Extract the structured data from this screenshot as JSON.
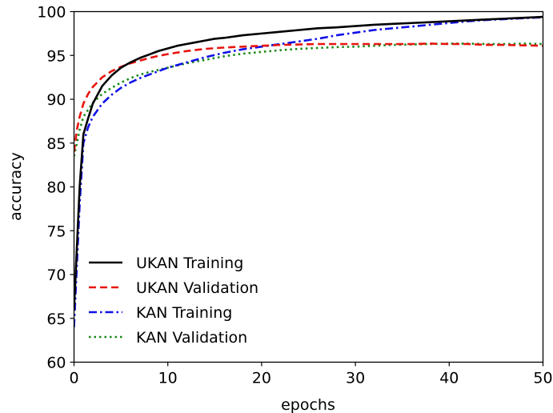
{
  "chart_data": {
    "type": "line",
    "title": "",
    "xlabel": "epochs",
    "ylabel": "accuracy",
    "xlim": [
      0,
      50
    ],
    "ylim": [
      60,
      100
    ],
    "xticks": [
      0,
      10,
      20,
      30,
      40,
      50
    ],
    "yticks": [
      60,
      65,
      70,
      75,
      80,
      85,
      90,
      95,
      100
    ],
    "grid": false,
    "legend_position": "lower-left",
    "series": [
      {
        "name": "UKAN Training",
        "color": "#000000",
        "dash": "solid",
        "x": [
          0,
          0.3,
          0.6,
          1,
          1.5,
          2,
          3,
          4,
          5,
          6,
          7,
          8,
          9,
          10,
          11,
          12,
          13,
          14,
          15,
          16,
          18,
          20,
          22,
          24,
          26,
          28,
          30,
          32,
          34,
          36,
          38,
          40,
          42,
          44,
          46,
          48,
          50
        ],
        "y": [
          66.0,
          73.0,
          80.0,
          86.0,
          87.8,
          89.5,
          91.5,
          92.7,
          93.6,
          94.2,
          94.7,
          95.1,
          95.5,
          95.8,
          96.1,
          96.3,
          96.5,
          96.7,
          96.9,
          97.0,
          97.3,
          97.5,
          97.7,
          97.9,
          98.1,
          98.2,
          98.35,
          98.5,
          98.6,
          98.7,
          98.8,
          98.9,
          99.0,
          99.1,
          99.2,
          99.3,
          99.4
        ]
      },
      {
        "name": "UKAN Validation",
        "color": "#e8140f",
        "dash": "dashed",
        "x": [
          0,
          0.3,
          0.6,
          1,
          1.5,
          2,
          3,
          4,
          5,
          6,
          7,
          8,
          9,
          10,
          12,
          14,
          16,
          18,
          20,
          22,
          24,
          26,
          28,
          30,
          32,
          34,
          36,
          38,
          40,
          42,
          44,
          46,
          48,
          50
        ],
        "y": [
          84.0,
          86.5,
          88.0,
          89.5,
          90.6,
          91.4,
          92.5,
          93.2,
          93.7,
          94.1,
          94.4,
          94.7,
          94.95,
          95.15,
          95.5,
          95.75,
          95.9,
          96.0,
          96.1,
          96.2,
          96.25,
          96.3,
          96.3,
          96.3,
          96.3,
          96.3,
          96.3,
          96.35,
          96.3,
          96.3,
          96.2,
          96.2,
          96.15,
          96.1
        ]
      },
      {
        "name": "KAN Training",
        "color": "#1010e8",
        "dash": "dashdot",
        "x": [
          0,
          0.3,
          0.6,
          1,
          1.5,
          2,
          3,
          4,
          5,
          6,
          7,
          8,
          9,
          10,
          12,
          14,
          16,
          18,
          20,
          22,
          24,
          26,
          28,
          30,
          32,
          34,
          36,
          38,
          40,
          42,
          44,
          46,
          48,
          50
        ],
        "y": [
          64.0,
          71.0,
          78.0,
          85.0,
          86.8,
          88.0,
          89.5,
          90.5,
          91.3,
          91.9,
          92.4,
          92.8,
          93.2,
          93.6,
          94.2,
          94.8,
          95.3,
          95.7,
          96.0,
          96.3,
          96.6,
          96.9,
          97.3,
          97.6,
          97.9,
          98.1,
          98.3,
          98.5,
          98.7,
          98.9,
          99.05,
          99.15,
          99.25,
          99.35
        ]
      },
      {
        "name": "KAN Validation",
        "color": "#178a17",
        "dash": "dotted",
        "x": [
          0,
          0.3,
          0.6,
          1,
          1.5,
          2,
          3,
          4,
          5,
          6,
          7,
          8,
          9,
          10,
          12,
          14,
          16,
          18,
          20,
          22,
          24,
          26,
          28,
          30,
          32,
          34,
          36,
          38,
          40,
          42,
          44,
          46,
          48,
          50
        ],
        "y": [
          83.5,
          85.0,
          86.5,
          88.0,
          88.8,
          89.6,
          90.6,
          91.3,
          91.9,
          92.4,
          92.8,
          93.1,
          93.35,
          93.6,
          94.1,
          94.5,
          94.9,
          95.2,
          95.4,
          95.6,
          95.75,
          95.85,
          95.95,
          96.0,
          96.1,
          96.2,
          96.25,
          96.3,
          96.35,
          96.35,
          96.3,
          96.3,
          96.35,
          96.3
        ]
      }
    ]
  }
}
